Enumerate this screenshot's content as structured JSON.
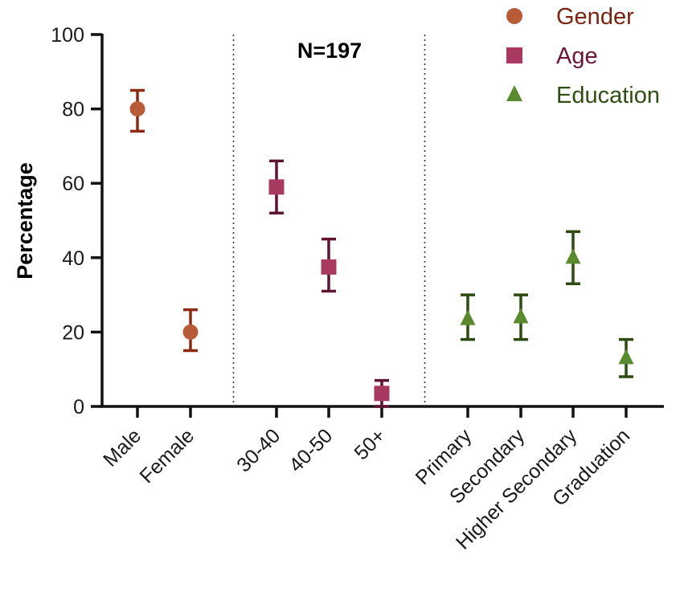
{
  "chart_data": {
    "type": "scatter",
    "ylabel": "Percentage",
    "xlabel": "",
    "ylim": [
      0,
      100
    ],
    "yticks": [
      0,
      20,
      40,
      60,
      80,
      100
    ],
    "annotation": "N=197",
    "categories": [
      "Male",
      "Female",
      "30-40",
      "40-50",
      "50+",
      "Primary",
      "Secondary",
      "Higher Secondary",
      "Graduation"
    ],
    "series": [
      {
        "name": "Gender",
        "marker": "circle",
        "color": "#b85c38",
        "line_color": "#8b2c12",
        "label_color": "#7a2410",
        "points": [
          {
            "category": "Male",
            "value": 80,
            "low": 74,
            "high": 85
          },
          {
            "category": "Female",
            "value": 20,
            "low": 15,
            "high": 26
          }
        ]
      },
      {
        "name": "Age",
        "marker": "square",
        "color": "#a83a62",
        "line_color": "#5e1432",
        "label_color": "#6b1638",
        "points": [
          {
            "category": "30-40",
            "value": 59,
            "low": 52,
            "high": 66
          },
          {
            "category": "40-50",
            "value": 37.5,
            "low": 31,
            "high": 45
          },
          {
            "category": "50+",
            "value": 3.5,
            "low": 0,
            "high": 7
          }
        ]
      },
      {
        "name": "Education",
        "marker": "triangle",
        "color": "#5a8a2e",
        "line_color": "#2d4a10",
        "label_color": "#2f4f12",
        "points": [
          {
            "category": "Primary",
            "value": 23.5,
            "low": 18,
            "high": 30
          },
          {
            "category": "Secondary",
            "value": 24,
            "low": 18,
            "high": 30
          },
          {
            "category": "Higher Secondary",
            "value": 40,
            "low": 33,
            "high": 47
          },
          {
            "category": "Graduation",
            "value": 13,
            "low": 8,
            "high": 18
          }
        ]
      }
    ],
    "group_separators_after": [
      "Female",
      "50+"
    ]
  }
}
